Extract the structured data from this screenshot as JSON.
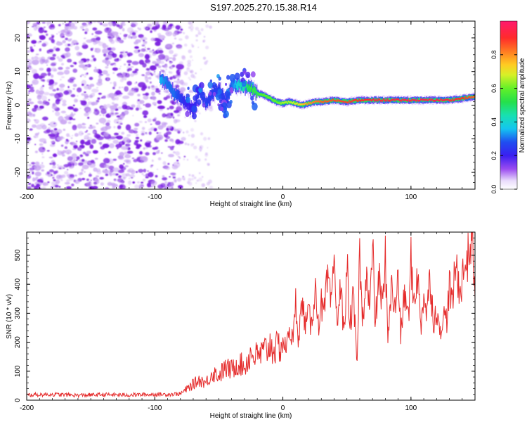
{
  "title": "S197.2025.270.15.38.R14",
  "colors": {
    "snr_line": "#e52b2b",
    "noise_purple": "#7a1fe0",
    "noise_light": "#c8a4f2"
  },
  "chart_data": [
    {
      "type": "heatmap",
      "title": "S197.2025.270.15.38.R14",
      "xlabel": "Height of straight line (km)",
      "ylabel": "Frequency (Hz)",
      "xlim": [
        -200,
        150
      ],
      "ylim": [
        -25,
        25
      ],
      "x_ticks": [
        -200,
        -100,
        0,
        100
      ],
      "x_tick_labels": [
        "-200",
        "-100",
        "0",
        "100"
      ],
      "y_ticks": [
        -20,
        -10,
        0,
        10,
        20
      ],
      "y_tick_labels": [
        "-20",
        "-10",
        "0",
        "10",
        "20"
      ],
      "colorbar": {
        "label": "Normalized spectral amplitude",
        "range": [
          0,
          1
        ],
        "ticks": [
          0.0,
          0.2,
          0.4,
          0.6,
          0.8
        ],
        "tick_labels": [
          "0.0",
          "0.2",
          "0.4",
          "0.6",
          "0.8"
        ]
      },
      "ridge": {
        "x": [
          -96,
          -90,
          -85,
          -80,
          -75,
          -70,
          -65,
          -60,
          -55,
          -50,
          -45,
          -40,
          -35,
          -30,
          -25,
          -20,
          -15,
          -10,
          -5,
          0,
          5,
          10,
          15,
          20,
          25,
          30,
          40,
          50,
          60,
          70,
          80,
          90,
          100,
          110,
          120,
          130,
          140,
          150
        ],
        "freq": [
          7.5,
          6.5,
          3.5,
          2.0,
          0.5,
          -1.5,
          4.5,
          0.5,
          3.5,
          4.5,
          1.5,
          5.5,
          6.0,
          5.5,
          5.0,
          3.5,
          3.0,
          2.0,
          1.0,
          0.5,
          1.0,
          0.5,
          0.0,
          0.5,
          1.0,
          1.0,
          1.5,
          1.0,
          1.5,
          1.5,
          1.5,
          1.5,
          1.5,
          1.5,
          1.5,
          1.5,
          2.0,
          2.5
        ],
        "amplitude": [
          0.35,
          0.3,
          0.3,
          0.25,
          0.2,
          0.2,
          0.25,
          0.25,
          0.25,
          0.25,
          0.25,
          0.3,
          0.4,
          0.45,
          0.55,
          0.55,
          0.6,
          0.6,
          0.6,
          0.65,
          0.65,
          0.7,
          0.75,
          0.8,
          0.82,
          0.85,
          0.87,
          0.88,
          0.9,
          0.92,
          0.93,
          0.94,
          0.95,
          0.95,
          0.94,
          0.93,
          0.9,
          0.85
        ]
      },
      "noise_region_km": [
        -200,
        -78
      ],
      "series": [
        {
          "name": "Normalized spectral amplitude"
        }
      ]
    },
    {
      "type": "line",
      "xlabel": "Height of straight line (km)",
      "ylabel": "SNR (10 * v/v)",
      "xlim": [
        -200,
        150
      ],
      "ylim": [
        0,
        580
      ],
      "x_ticks": [
        -200,
        -100,
        0,
        100
      ],
      "x_tick_labels": [
        "-200",
        "-100",
        "0",
        "100"
      ],
      "y_ticks": [
        0,
        100,
        200,
        300,
        400,
        500
      ],
      "y_tick_labels": [
        "0",
        "100",
        "200",
        "300",
        "400",
        "500"
      ],
      "series": [
        {
          "name": "SNR",
          "x": [
            -200,
            -180,
            -160,
            -140,
            -120,
            -100,
            -90,
            -80,
            -75,
            -70,
            -65,
            -60,
            -55,
            -50,
            -45,
            -40,
            -35,
            -30,
            -25,
            -20,
            -15,
            -10,
            -5,
            0,
            3,
            5,
            8,
            10,
            12,
            15,
            18,
            20,
            22,
            25,
            28,
            30,
            32,
            35,
            38,
            40,
            42,
            45,
            48,
            50,
            52,
            55,
            58,
            60,
            62,
            65,
            68,
            70,
            72,
            75,
            78,
            80,
            82,
            85,
            88,
            90,
            92,
            95,
            98,
            100,
            102,
            105,
            108,
            110,
            112,
            115,
            118,
            120,
            122,
            125,
            128,
            130,
            132,
            135,
            138,
            140,
            142,
            145,
            148,
            150
          ],
          "values": [
            18,
            20,
            17,
            19,
            18,
            20,
            20,
            22,
            38,
            55,
            70,
            60,
            95,
            85,
            110,
            105,
            130,
            115,
            160,
            150,
            165,
            190,
            175,
            200,
            180,
            250,
            200,
            340,
            220,
            330,
            260,
            300,
            250,
            390,
            270,
            330,
            290,
            420,
            310,
            510,
            280,
            380,
            230,
            490,
            250,
            350,
            120,
            520,
            260,
            450,
            300,
            550,
            260,
            420,
            320,
            490,
            230,
            390,
            300,
            460,
            220,
            370,
            280,
            480,
            340,
            430,
            260,
            380,
            300,
            420,
            260,
            330,
            230,
            290,
            280,
            400,
            320,
            470,
            380,
            420,
            460,
            500,
            580,
            350
          ]
        }
      ]
    }
  ]
}
